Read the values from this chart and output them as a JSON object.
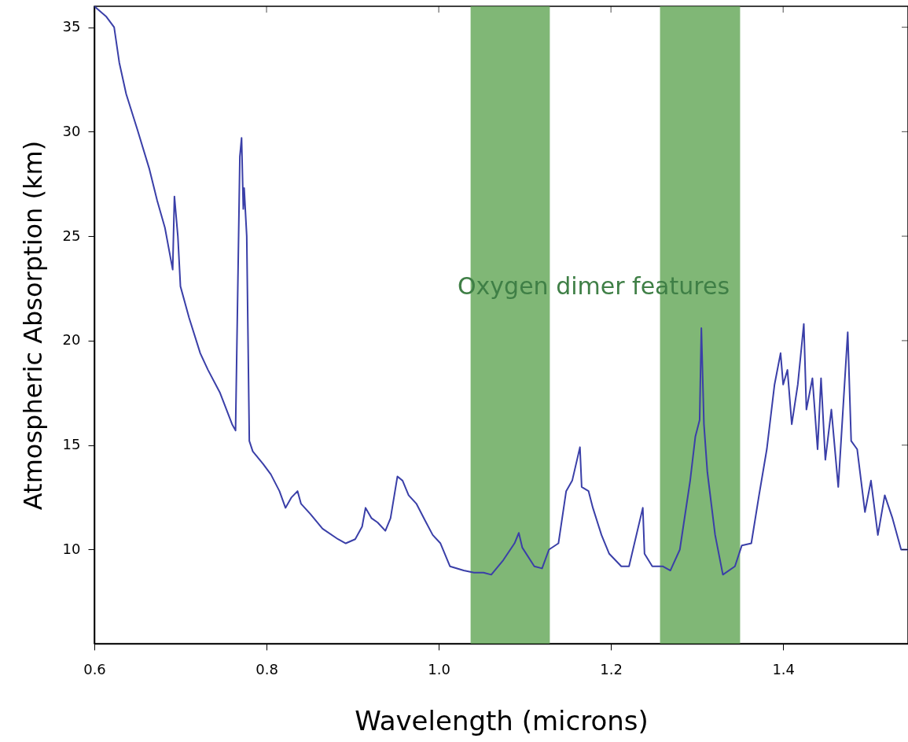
{
  "chart_data": {
    "type": "line",
    "xlabel": "Wavelength (microns)",
    "ylabel": "Atmospheric Absorption (km)",
    "xlim": [
      0.6,
      1.545
    ],
    "ylim": [
      5.5,
      36
    ],
    "xticks": [
      0.6,
      0.8,
      {
        "value": 1.0,
        "label": "1.0"
      },
      1.2,
      1.4
    ],
    "yticks": [
      10,
      15,
      20,
      25,
      30,
      35
    ],
    "grid": false,
    "marker": "none",
    "line_style": "solid",
    "series": [
      {
        "color": "#3a3fa8",
        "x": [
          0.6,
          0.614,
          0.623,
          0.629,
          0.637,
          0.65,
          0.664,
          0.673,
          0.682,
          0.691,
          0.693,
          0.697,
          0.7,
          0.71,
          0.723,
          0.732,
          0.746,
          0.76,
          0.764,
          0.769,
          0.771,
          0.773,
          0.774,
          0.777,
          0.78,
          0.784,
          0.796,
          0.805,
          0.815,
          0.822,
          0.829,
          0.836,
          0.84,
          0.851,
          0.865,
          0.883,
          0.892,
          0.903,
          0.911,
          0.915,
          0.922,
          0.929,
          0.938,
          0.944,
          0.952,
          0.958,
          0.965,
          0.974,
          0.984,
          0.993,
          1.002,
          1.013,
          1.029,
          1.041,
          1.052,
          1.061,
          1.075,
          1.088,
          1.093,
          1.097,
          1.111,
          1.12,
          1.128,
          1.139,
          1.148,
          1.155,
          1.164,
          1.166,
          1.174,
          1.179,
          1.189,
          1.198,
          1.212,
          1.221,
          1.237,
          1.239,
          1.248,
          1.26,
          1.269,
          1.28,
          1.292,
          1.298,
          1.303,
          1.305,
          1.308,
          1.312,
          1.321,
          1.33,
          1.344,
          1.352,
          1.363,
          1.372,
          1.381,
          1.39,
          1.397,
          1.4,
          1.405,
          1.41,
          1.417,
          1.424,
          1.427,
          1.434,
          1.44,
          1.444,
          1.449,
          1.456,
          1.464,
          1.475,
          1.479,
          1.486,
          1.495,
          1.502,
          1.51,
          1.518,
          1.527,
          1.537,
          1.545
        ],
        "values": [
          36.0,
          35.5,
          35.0,
          33.3,
          31.8,
          30.1,
          28.2,
          26.7,
          25.4,
          23.4,
          26.9,
          25.0,
          22.6,
          21.1,
          19.4,
          18.6,
          17.5,
          16.0,
          15.7,
          28.8,
          29.7,
          26.3,
          27.3,
          25.0,
          15.2,
          14.7,
          14.1,
          13.6,
          12.8,
          12.0,
          12.5,
          12.8,
          12.2,
          11.7,
          11.0,
          10.5,
          10.3,
          10.5,
          11.1,
          12.0,
          11.5,
          11.3,
          10.9,
          11.5,
          13.5,
          13.3,
          12.6,
          12.2,
          11.4,
          10.7,
          10.3,
          9.2,
          9.0,
          8.9,
          8.9,
          8.8,
          9.5,
          10.3,
          10.8,
          10.1,
          9.2,
          9.1,
          10.0,
          10.3,
          12.8,
          13.3,
          14.9,
          13.0,
          12.8,
          12.0,
          10.7,
          9.8,
          9.2,
          9.2,
          12.0,
          9.8,
          9.2,
          9.2,
          9.0,
          10.0,
          13.3,
          15.4,
          16.2,
          20.6,
          16.0,
          13.7,
          10.7,
          8.8,
          9.2,
          10.2,
          10.3,
          12.6,
          14.8,
          17.9,
          19.4,
          17.9,
          18.6,
          16.0,
          17.9,
          20.8,
          16.7,
          18.2,
          14.8,
          18.2,
          14.3,
          16.7,
          13.0,
          20.4,
          15.2,
          14.8,
          11.8,
          13.3,
          10.7,
          12.6,
          11.5,
          10.0,
          10.0
        ]
      }
    ],
    "bands": [
      {
        "axis": "x",
        "from": 1.037,
        "to": 1.129,
        "color": "#6aaa5e"
      },
      {
        "axis": "x",
        "from": 1.257,
        "to": 1.35,
        "color": "#6aaa5e"
      }
    ],
    "annotations": [
      "Oxygen dimer features"
    ]
  }
}
